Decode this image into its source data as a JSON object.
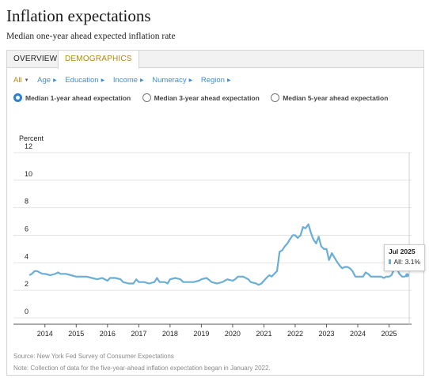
{
  "page": {
    "title": "Inflation expectations",
    "subtitle": "Median one-year ahead expected inflation rate"
  },
  "tabs": [
    {
      "label": "OVERVIEW",
      "active": false
    },
    {
      "label": "DEMOGRAPHICS",
      "active": true
    }
  ],
  "filters": [
    {
      "label": "All",
      "active": true
    },
    {
      "label": "Age",
      "active": false
    },
    {
      "label": "Education",
      "active": false
    },
    {
      "label": "Income",
      "active": false
    },
    {
      "label": "Numeracy",
      "active": false
    },
    {
      "label": "Region",
      "active": false
    }
  ],
  "radios": [
    {
      "label": "Median 1-year ahead expectation",
      "selected": true
    },
    {
      "label": "Median 3-year ahead expectation",
      "selected": false
    },
    {
      "label": "Median 5-year ahead expectation",
      "selected": false
    }
  ],
  "tooltip": {
    "date": "Jul 2025",
    "series_label": "All: 3.1%"
  },
  "footer": {
    "source": "Source: New York Fed Survey of Consumer Expectations",
    "note": "Note: Collection of data for the five-year-ahead inflation expectation began in January 2022."
  },
  "colors": {
    "line": "#6aaed6",
    "active_tab_text": "#b8860b",
    "link": "#3a8fd6",
    "radio_selected": "#2c7fd4"
  },
  "chart_data": {
    "type": "line",
    "ylabel": "Percent",
    "ylim": [
      0,
      12
    ],
    "yticks": [
      0,
      2,
      4,
      6,
      8,
      10,
      12
    ],
    "xlim": [
      2013.5,
      2025.72
    ],
    "xticks": [
      2014,
      2015,
      2016,
      2017,
      2018,
      2019,
      2020,
      2021,
      2022,
      2023,
      2024,
      2025
    ],
    "grid": true,
    "series": [
      {
        "name": "All",
        "points": [
          [
            2013.5,
            3.1
          ],
          [
            2013.58,
            3.2
          ],
          [
            2013.67,
            3.4
          ],
          [
            2013.75,
            3.4
          ],
          [
            2013.83,
            3.3
          ],
          [
            2013.92,
            3.2
          ],
          [
            2014.0,
            3.2
          ],
          [
            2014.17,
            3.1
          ],
          [
            2014.33,
            3.2
          ],
          [
            2014.42,
            3.3
          ],
          [
            2014.5,
            3.2
          ],
          [
            2014.67,
            3.2
          ],
          [
            2014.83,
            3.1
          ],
          [
            2015.0,
            3.0
          ],
          [
            2015.17,
            3.0
          ],
          [
            2015.33,
            3.0
          ],
          [
            2015.5,
            2.9
          ],
          [
            2015.67,
            2.8
          ],
          [
            2015.83,
            2.9
          ],
          [
            2016.0,
            2.7
          ],
          [
            2016.08,
            2.9
          ],
          [
            2016.25,
            2.9
          ],
          [
            2016.42,
            2.8
          ],
          [
            2016.5,
            2.6
          ],
          [
            2016.67,
            2.5
          ],
          [
            2016.83,
            2.5
          ],
          [
            2016.92,
            2.8
          ],
          [
            2017.0,
            2.6
          ],
          [
            2017.17,
            2.6
          ],
          [
            2017.33,
            2.5
          ],
          [
            2017.5,
            2.6
          ],
          [
            2017.58,
            2.9
          ],
          [
            2017.67,
            2.6
          ],
          [
            2017.83,
            2.6
          ],
          [
            2017.92,
            2.5
          ],
          [
            2018.0,
            2.8
          ],
          [
            2018.17,
            2.9
          ],
          [
            2018.33,
            2.8
          ],
          [
            2018.42,
            2.6
          ],
          [
            2018.58,
            2.6
          ],
          [
            2018.75,
            2.6
          ],
          [
            2018.92,
            2.7
          ],
          [
            2019.0,
            2.8
          ],
          [
            2019.17,
            2.9
          ],
          [
            2019.33,
            2.6
          ],
          [
            2019.5,
            2.5
          ],
          [
            2019.67,
            2.6
          ],
          [
            2019.83,
            2.8
          ],
          [
            2020.0,
            2.7
          ],
          [
            2020.08,
            2.8
          ],
          [
            2020.17,
            3.0
          ],
          [
            2020.33,
            3.0
          ],
          [
            2020.42,
            2.9
          ],
          [
            2020.5,
            2.8
          ],
          [
            2020.58,
            2.6
          ],
          [
            2020.75,
            2.5
          ],
          [
            2020.83,
            2.4
          ],
          [
            2020.92,
            2.5
          ],
          [
            2021.0,
            2.7
          ],
          [
            2021.08,
            2.9
          ],
          [
            2021.17,
            3.1
          ],
          [
            2021.25,
            3.0
          ],
          [
            2021.33,
            3.2
          ],
          [
            2021.42,
            3.4
          ],
          [
            2021.5,
            4.8
          ],
          [
            2021.58,
            4.9
          ],
          [
            2021.67,
            5.2
          ],
          [
            2021.75,
            5.4
          ],
          [
            2021.83,
            5.7
          ],
          [
            2021.92,
            6.0
          ],
          [
            2022.0,
            6.0
          ],
          [
            2022.08,
            5.8
          ],
          [
            2022.17,
            6.0
          ],
          [
            2022.25,
            6.6
          ],
          [
            2022.33,
            6.5
          ],
          [
            2022.42,
            6.8
          ],
          [
            2022.5,
            6.2
          ],
          [
            2022.58,
            5.7
          ],
          [
            2022.67,
            5.4
          ],
          [
            2022.75,
            5.9
          ],
          [
            2022.83,
            5.2
          ],
          [
            2022.92,
            5.0
          ],
          [
            2023.0,
            5.0
          ],
          [
            2023.08,
            4.2
          ],
          [
            2023.17,
            4.7
          ],
          [
            2023.25,
            4.4
          ],
          [
            2023.33,
            4.1
          ],
          [
            2023.42,
            3.8
          ],
          [
            2023.5,
            3.6
          ],
          [
            2023.58,
            3.7
          ],
          [
            2023.67,
            3.7
          ],
          [
            2023.75,
            3.6
          ],
          [
            2023.83,
            3.4
          ],
          [
            2023.92,
            3.0
          ],
          [
            2024.0,
            3.0
          ],
          [
            2024.17,
            3.0
          ],
          [
            2024.25,
            3.3
          ],
          [
            2024.33,
            3.2
          ],
          [
            2024.42,
            3.0
          ],
          [
            2024.5,
            3.0
          ],
          [
            2024.58,
            3.0
          ],
          [
            2024.75,
            3.0
          ],
          [
            2024.83,
            2.9
          ],
          [
            2024.92,
            3.0
          ],
          [
            2025.0,
            3.0
          ],
          [
            2025.08,
            3.1
          ],
          [
            2025.17,
            3.6
          ],
          [
            2025.25,
            3.6
          ],
          [
            2025.33,
            3.2
          ],
          [
            2025.42,
            3.0
          ],
          [
            2025.5,
            3.0
          ],
          [
            2025.58,
            3.1
          ]
        ]
      }
    ],
    "highlight": {
      "x": 2025.58,
      "y": 3.1
    }
  }
}
